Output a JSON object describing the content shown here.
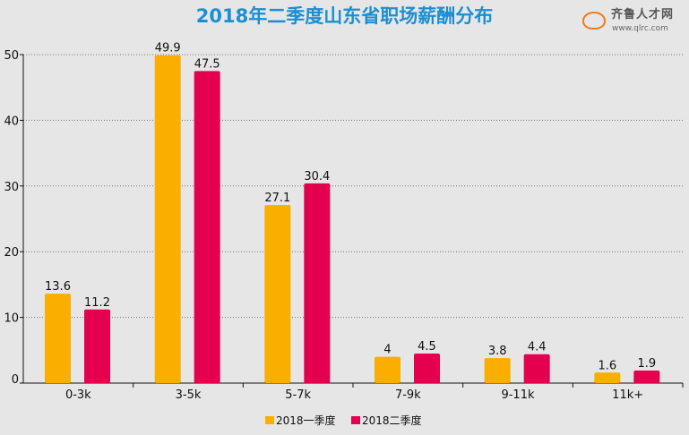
{
  "chart_data": {
    "type": "bar",
    "title": "2018年二季度山东省职场薪酬分布",
    "categories": [
      "0-3k",
      "3-5k",
      "5-7k",
      "7-9k",
      "9-11k",
      "11k+"
    ],
    "series": [
      {
        "name": "2018一季度",
        "color": "#f9ae00",
        "values": [
          13.6,
          49.9,
          27.1,
          4,
          3.8,
          1.6
        ]
      },
      {
        "name": "2018二季度",
        "color": "#e5004f",
        "values": [
          11.2,
          47.5,
          30.4,
          4.5,
          4.4,
          1.9
        ]
      }
    ],
    "ylim": [
      0,
      50
    ],
    "yticks": [
      0,
      10,
      20,
      30,
      40,
      50
    ],
    "grid": true,
    "legend": "bottom",
    "xlabel": "",
    "ylabel": ""
  },
  "logo": {
    "name": "齐鲁人才网",
    "url": "www.qlrc.com"
  }
}
